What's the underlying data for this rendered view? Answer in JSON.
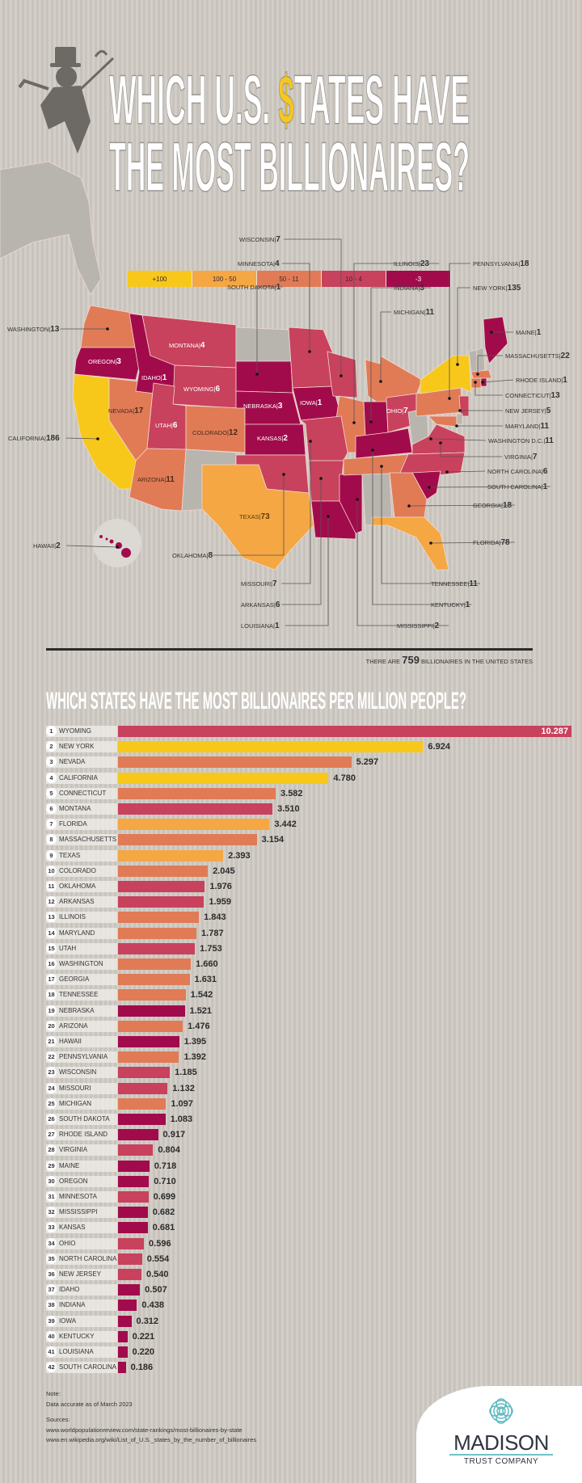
{
  "title": {
    "line1_a": "WHICH U.S. ",
    "line1_dollar": "$",
    "line1_b": "TATES HAVE",
    "line2": "THE MOST BILLIONAIRES?"
  },
  "legend": [
    {
      "label": "+100",
      "color": "#f7c81a"
    },
    {
      "label": "100 - 50",
      "color": "#f4a743"
    },
    {
      "label": "50 - 11",
      "color": "#e07b56"
    },
    {
      "label": "10 - 4",
      "color": "#c8415d"
    },
    {
      "label": "-3",
      "color": "#a20b4b"
    }
  ],
  "no_data_color": "#b8b5af",
  "map": {
    "states": [
      {
        "name": "WASHINGTON",
        "count": 13
      },
      {
        "name": "OREGON",
        "count": 3
      },
      {
        "name": "CALIFORNIA",
        "count": 186
      },
      {
        "name": "NEVADA",
        "count": 17
      },
      {
        "name": "IDAHO",
        "count": 1
      },
      {
        "name": "MONTANA",
        "count": 4
      },
      {
        "name": "WYOMING",
        "count": 6
      },
      {
        "name": "UTAH",
        "count": 6
      },
      {
        "name": "COLORADO",
        "count": 12
      },
      {
        "name": "ARIZONA",
        "count": 11
      },
      {
        "name": "SOUTH DAKOTA",
        "count": 1
      },
      {
        "name": "NEBRASKA",
        "count": 3
      },
      {
        "name": "KANSAS",
        "count": 2
      },
      {
        "name": "OKLAHOMA",
        "count": 8
      },
      {
        "name": "TEXAS",
        "count": 73
      },
      {
        "name": "MINNESOTA",
        "count": 4
      },
      {
        "name": "IOWA",
        "count": 1
      },
      {
        "name": "WISCONSIN",
        "count": 7
      },
      {
        "name": "MICHIGAN",
        "count": 11
      },
      {
        "name": "ILLINOIS",
        "count": 23
      },
      {
        "name": "INDIANA",
        "count": 3
      },
      {
        "name": "OHIO",
        "count": 7
      },
      {
        "name": "MISSOURI",
        "count": 7
      },
      {
        "name": "ARKANSAS",
        "count": 6
      },
      {
        "name": "LOUISIANA",
        "count": 1
      },
      {
        "name": "MISSISSIPPI",
        "count": 2
      },
      {
        "name": "TENNESSEE",
        "count": 11
      },
      {
        "name": "KENTUCKY",
        "count": 1
      },
      {
        "name": "VIRGINIA",
        "count": 7
      },
      {
        "name": "NORTH CAROLINA",
        "count": 6
      },
      {
        "name": "SOUTH CAROLINA",
        "count": 1
      },
      {
        "name": "GEORGIA",
        "count": 18
      },
      {
        "name": "FLORIDA",
        "count": 78
      },
      {
        "name": "PENNSYLVANIA",
        "count": 18
      },
      {
        "name": "NEW YORK",
        "count": 135
      },
      {
        "name": "NEW JERSEY",
        "count": 5
      },
      {
        "name": "MARYLAND",
        "count": 11
      },
      {
        "name": "WASHINGTON D.C.",
        "count": 11
      },
      {
        "name": "MAINE",
        "count": 1
      },
      {
        "name": "MASSACHUSETTS",
        "count": 22
      },
      {
        "name": "CONNECTICUT",
        "count": 13
      },
      {
        "name": "RHODE ISLAND",
        "count": 1
      },
      {
        "name": "HAWAII",
        "count": 2
      }
    ],
    "total_prefix": "THERE ARE",
    "total_value": "759",
    "total_suffix": "BILLIONAIRES IN THE UNITED STATES"
  },
  "chart_data": {
    "type": "bar",
    "orientation": "horizontal",
    "title": "WHICH STATES HAVE THE MOST BILLIONAIRES PER MILLION PEOPLE?",
    "xlim": [
      0,
      10.287
    ],
    "categories": [
      "WYOMING",
      "NEW YORK",
      "NEVADA",
      "CALIFORNIA",
      "CONNECTICUT",
      "MONTANA",
      "FLORIDA",
      "MASSACHUSETTS",
      "TEXAS",
      "COLORADO",
      "OKLAHOMA",
      "ARKANSAS",
      "ILLINOIS",
      "MARYLAND",
      "UTAH",
      "WASHINGTON",
      "GEORGIA",
      "TENNESSEE",
      "NEBRASKA",
      "ARIZONA",
      "HAWAII",
      "PENNSYLVANIA",
      "WISCONSIN",
      "MISSOURI",
      "MICHIGAN",
      "SOUTH DAKOTA",
      "RHODE ISLAND",
      "VIRGINIA",
      "MAINE",
      "OREGON",
      "MINNESOTA",
      "MISSISSIPPI",
      "KANSAS",
      "OHIO",
      "NORTH CAROLINA",
      "NEW JERSEY",
      "IDAHO",
      "INDIANA",
      "IOWA",
      "KENTUCKY",
      "LOUISIANA",
      "SOUTH CAROLINA"
    ],
    "values": [
      "10.287",
      "6.924",
      "5.297",
      "4.780",
      "3.582",
      "3.510",
      "3.442",
      "3.154",
      "2.393",
      "2.045",
      "1.976",
      "1.959",
      "1.843",
      "1.787",
      "1.753",
      "1.660",
      "1.631",
      "1.542",
      "1.521",
      "1.476",
      "1.395",
      "1.392",
      "1.185",
      "1.132",
      "1.097",
      "1.083",
      "0.917",
      "0.804",
      "0.718",
      "0.710",
      "0.699",
      "0.682",
      "0.681",
      "0.596",
      "0.554",
      "0.540",
      "0.507",
      "0.438",
      "0.312",
      "0.221",
      "0.220",
      "0.186"
    ]
  },
  "footer": {
    "note_label": "Note:",
    "note_text": "Data accurate as of March 2023",
    "sources_label": "Sources:",
    "source1": "www.worldpopulationreview.com/state-rankings/most-billionaires-by-state",
    "source2": "www.en.wikipedia.org/wiki/List_of_U.S._states_by_the_number_of_billionaires",
    "logo_name": "MADISON",
    "logo_sub": "TRUST COMPANY"
  }
}
